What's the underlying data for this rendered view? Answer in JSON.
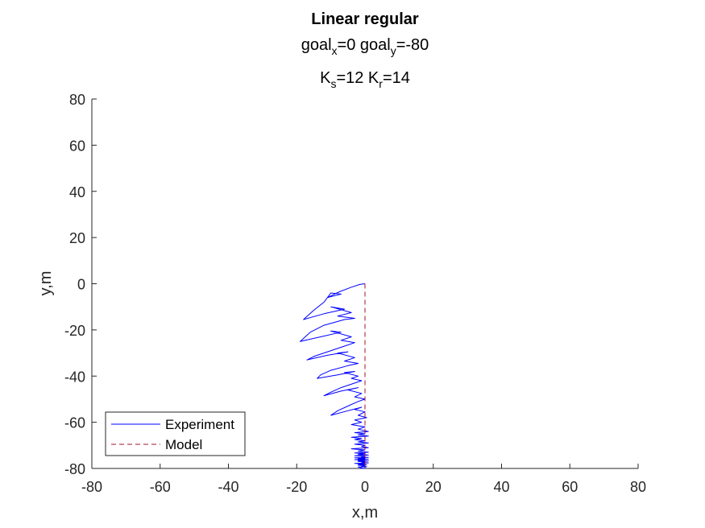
{
  "chart_data": {
    "type": "line",
    "title": "Linear regular",
    "subtitle_1": {
      "prefix": "goal",
      "sub1": "x",
      "mid": "=0  goal",
      "sub2": "y",
      "suffix": "=-80"
    },
    "subtitle_2": {
      "prefix": "K",
      "sub1": "s",
      "mid": "=12  K",
      "sub2": "r",
      "suffix": "=14"
    },
    "xlabel": "x,m",
    "ylabel": "y,m",
    "xlim": [
      -80,
      80
    ],
    "ylim": [
      -80,
      80
    ],
    "xticks": [
      -80,
      -60,
      -40,
      -20,
      0,
      20,
      40,
      60,
      80
    ],
    "yticks": [
      -80,
      -60,
      -40,
      -20,
      0,
      20,
      40,
      60,
      80
    ],
    "grid": false,
    "legend_position": "bottom-left",
    "series": [
      {
        "name": "Experiment",
        "color": "#0000ff",
        "style": "solid",
        "x": [
          0,
          -1.5,
          -4,
          -7.5,
          -11,
          -7,
          -10,
          -12,
          -15,
          -18,
          -12,
          -6,
          -10,
          -4,
          -8,
          -3,
          -6,
          -12,
          -16,
          -19,
          -13,
          -7,
          -10,
          -4,
          -7,
          -3,
          -6,
          -11,
          -15,
          -17,
          -11,
          -5,
          -8,
          -3,
          -6,
          -2,
          -5,
          -10,
          -13,
          -14,
          -8,
          -3,
          -6,
          -2,
          -4,
          -1,
          -3,
          -7,
          -10,
          -12,
          -7,
          -2,
          -5,
          -1,
          -3,
          0,
          -2,
          -5,
          -8,
          -10,
          -5,
          -1,
          -3,
          0,
          -2,
          0.5,
          -3,
          -1,
          -4,
          0,
          -2,
          1,
          -3,
          0,
          -2,
          1,
          -4,
          -1,
          -3,
          0,
          -2,
          1,
          -3,
          0,
          -1,
          1,
          -4,
          0,
          -2,
          1,
          -3,
          0,
          -2,
          1,
          -3,
          0,
          -1,
          1,
          -3,
          0,
          -2,
          1,
          -3,
          0,
          -2,
          1,
          -2,
          0,
          -1,
          1,
          -3,
          0,
          -2,
          0.5,
          -2,
          0,
          -1,
          0.5,
          -2,
          -1,
          -1.5,
          0,
          -1,
          0,
          -1,
          0
        ],
        "y": [
          0,
          -0.3,
          -1.5,
          -3.5,
          -6,
          -4.5,
          -4,
          -8,
          -11.5,
          -15.5,
          -13,
          -11,
          -10,
          -12.5,
          -14,
          -15,
          -15.5,
          -18,
          -21,
          -25,
          -23,
          -21,
          -20.5,
          -23,
          -24.5,
          -25.5,
          -27,
          -29.5,
          -31.5,
          -33,
          -31,
          -29.5,
          -30,
          -32,
          -33.5,
          -34.5,
          -35.5,
          -37.5,
          -39.5,
          -41,
          -39.5,
          -38,
          -38.5,
          -40,
          -41,
          -42,
          -43,
          -45,
          -47,
          -48.5,
          -46.5,
          -45,
          -46,
          -47.5,
          -49,
          -50,
          -51,
          -53,
          -55,
          -57,
          -55,
          -53.5,
          -54.5,
          -55.5,
          -57,
          -58,
          -59,
          -60,
          -61,
          -62,
          -63,
          -64,
          -64.5,
          -65,
          -65.5,
          -66,
          -66.5,
          -67,
          -67.5,
          -68,
          -68.5,
          -69,
          -69.5,
          -70,
          -70.5,
          -71,
          -71.5,
          -72,
          -72.5,
          -73,
          -73.3,
          -73.6,
          -73.9,
          -74.2,
          -74.5,
          -74.8,
          -75,
          -75.2,
          -75.4,
          -75.6,
          -75.8,
          -76,
          -76.2,
          -76.4,
          -76.6,
          -76.8,
          -77,
          -77.2,
          -77.4,
          -77.6,
          -77.8,
          -78,
          -78.2,
          -78.4,
          -78.6,
          -78.8,
          -79,
          -79.2,
          -79.4,
          -79.6,
          -79.8,
          -80,
          -80,
          -80,
          -80,
          -80
        ]
      },
      {
        "name": "Model",
        "color": "#a2142f",
        "style": "dashed",
        "x": [
          0,
          0
        ],
        "y": [
          0,
          -80
        ]
      }
    ]
  }
}
